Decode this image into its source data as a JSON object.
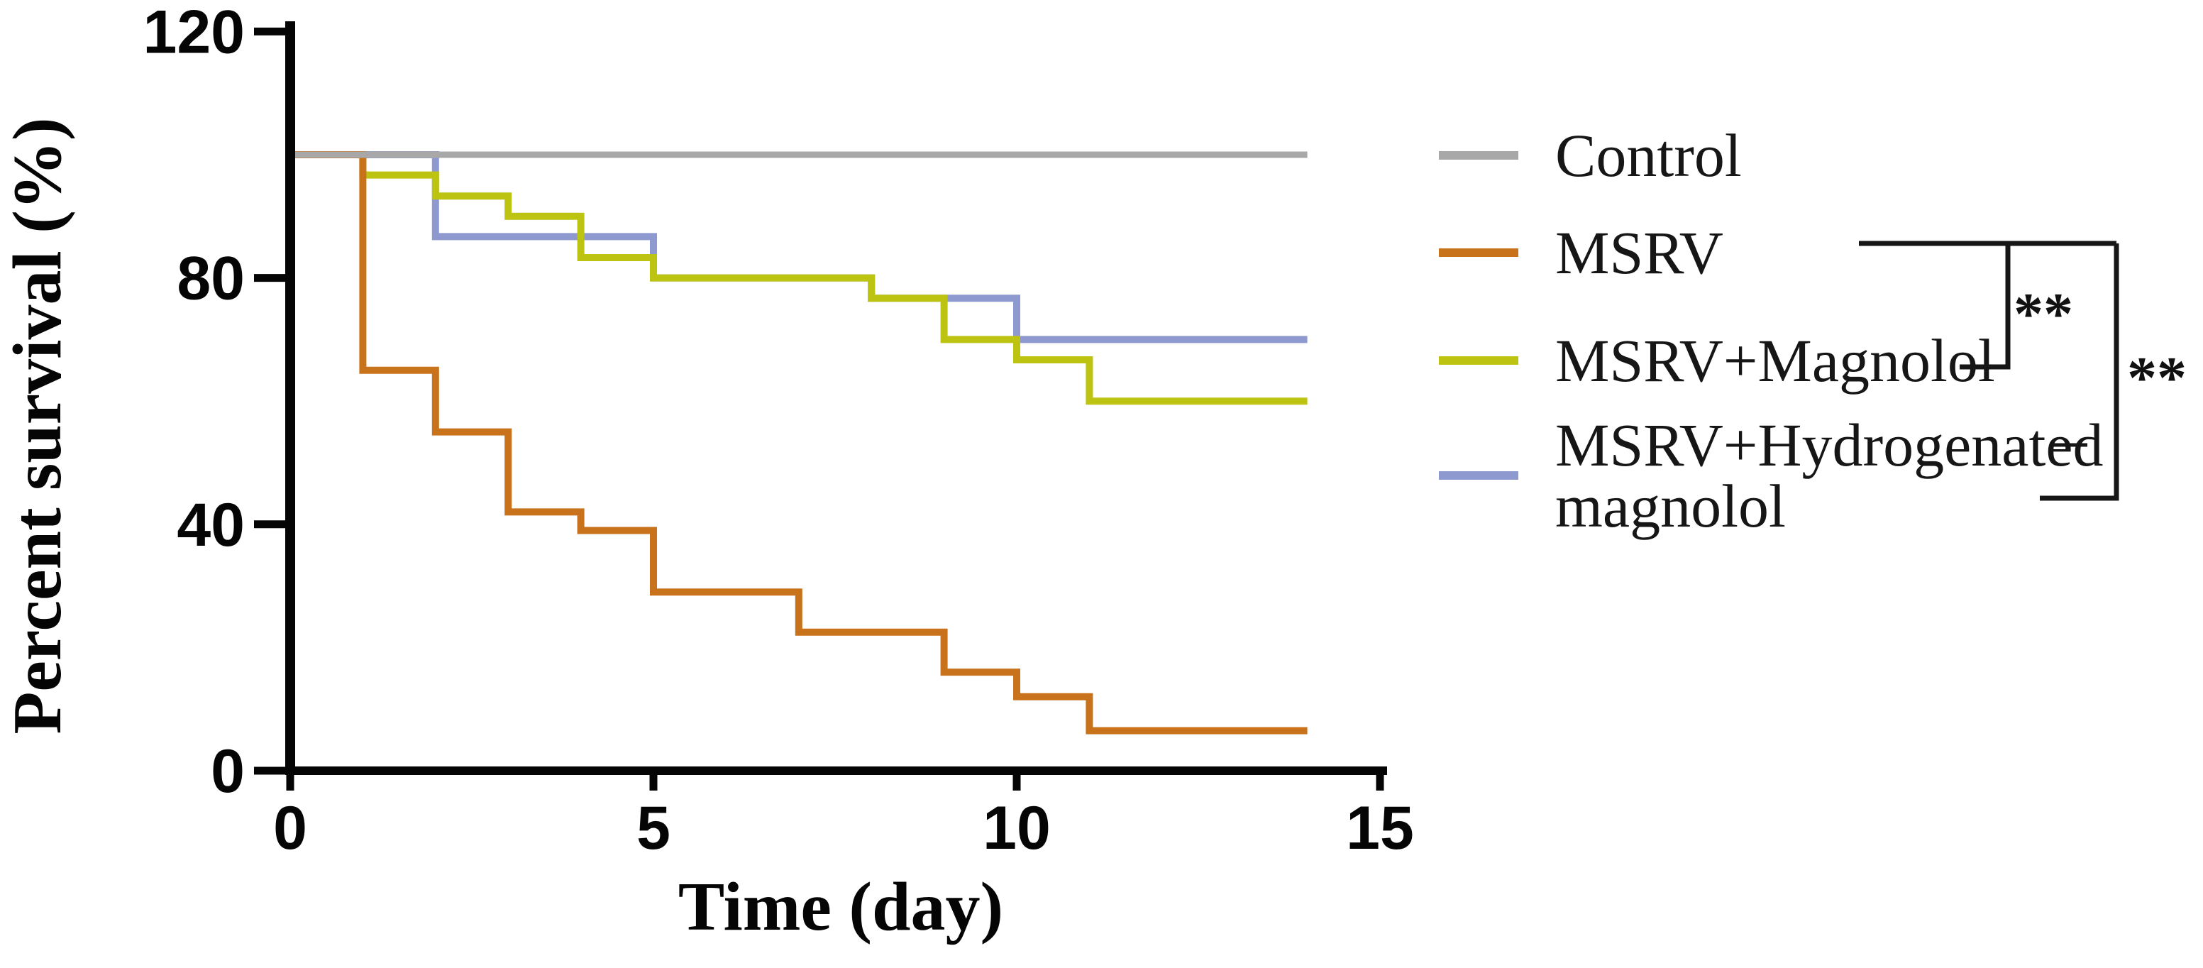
{
  "chart_data": {
    "type": "line",
    "subtype": "kaplan_meier_survival_step",
    "title": "",
    "xlabel": "Time (day)",
    "ylabel": "Percent survival (%)",
    "xlim": [
      0,
      15
    ],
    "ylim": [
      0,
      120
    ],
    "xticks": [
      0,
      5,
      10,
      15
    ],
    "yticks": [
      0,
      40,
      80,
      120
    ],
    "grid": false,
    "legend_position": "right-outside",
    "series": [
      {
        "name": "Control",
        "color": "#a8a8a8",
        "stroke_width": 9,
        "points": [
          [
            0,
            100
          ],
          [
            14,
            100
          ]
        ]
      },
      {
        "name": "MSRV",
        "color": "#c9721c",
        "stroke_width": 10,
        "points": [
          [
            0,
            100
          ],
          [
            1,
            100
          ],
          [
            1,
            65
          ],
          [
            2,
            65
          ],
          [
            2,
            55
          ],
          [
            3,
            55
          ],
          [
            3,
            42
          ],
          [
            4,
            42
          ],
          [
            4,
            39
          ],
          [
            5,
            39
          ],
          [
            5,
            29
          ],
          [
            7,
            29
          ],
          [
            7,
            22.5
          ],
          [
            9,
            22.5
          ],
          [
            9,
            16
          ],
          [
            10,
            16
          ],
          [
            10,
            12
          ],
          [
            11,
            12
          ],
          [
            11,
            6.5
          ],
          [
            14,
            6.5
          ]
        ]
      },
      {
        "name": "MSRV+Magnolol",
        "color": "#bcc411",
        "stroke_width": 10,
        "points": [
          [
            0,
            100
          ],
          [
            1,
            100
          ],
          [
            1,
            96.7
          ],
          [
            2,
            96.7
          ],
          [
            2,
            93.3
          ],
          [
            3,
            93.3
          ],
          [
            3,
            90
          ],
          [
            4,
            90
          ],
          [
            4,
            83.3
          ],
          [
            5,
            83.3
          ],
          [
            5,
            80
          ],
          [
            8,
            80
          ],
          [
            8,
            76.7
          ],
          [
            9,
            76.7
          ],
          [
            9,
            70
          ],
          [
            10,
            70
          ],
          [
            10,
            66.7
          ],
          [
            11,
            66.7
          ],
          [
            11,
            60
          ],
          [
            14,
            60
          ]
        ]
      },
      {
        "name": "MSRV+Hydrogenated magnolol",
        "color": "#8e99cf",
        "stroke_width": 10,
        "points": [
          [
            0,
            100
          ],
          [
            2,
            100
          ],
          [
            2,
            86.7
          ],
          [
            5,
            86.7
          ],
          [
            5,
            80
          ],
          [
            8,
            80
          ],
          [
            8,
            76.7
          ],
          [
            10,
            76.7
          ],
          [
            10,
            70
          ],
          [
            14,
            70
          ]
        ]
      }
    ],
    "draw_order": [
      "MSRV+Hydrogenated magnolol",
      "MSRV+Magnolol",
      "MSRV",
      "Control"
    ]
  },
  "axes": {
    "x": {
      "label": "Time (day)",
      "tick_labels": [
        "0",
        "5",
        "10",
        "15"
      ]
    },
    "y": {
      "label": "Percent survival (%)",
      "tick_labels": [
        "0",
        "40",
        "80",
        "120"
      ]
    }
  },
  "legend": {
    "items": [
      {
        "label": "Control",
        "label2": "",
        "color": "#a8a8a8"
      },
      {
        "label": "MSRV",
        "label2": "",
        "color": "#c9721c"
      },
      {
        "label": "MSRV+Magnolol",
        "label2": "",
        "color": "#bcc411"
      },
      {
        "label": "MSRV+Hydrogenated",
        "label2": "magnolol",
        "color": "#8e99cf"
      }
    ]
  },
  "annotations": {
    "comparisons": [
      {
        "group_a": "MSRV",
        "group_b": "MSRV+Magnolol",
        "significance": "**"
      },
      {
        "group_a": "MSRV",
        "group_b": "MSRV+Hydrogenated magnolol",
        "significance": "**"
      }
    ]
  }
}
